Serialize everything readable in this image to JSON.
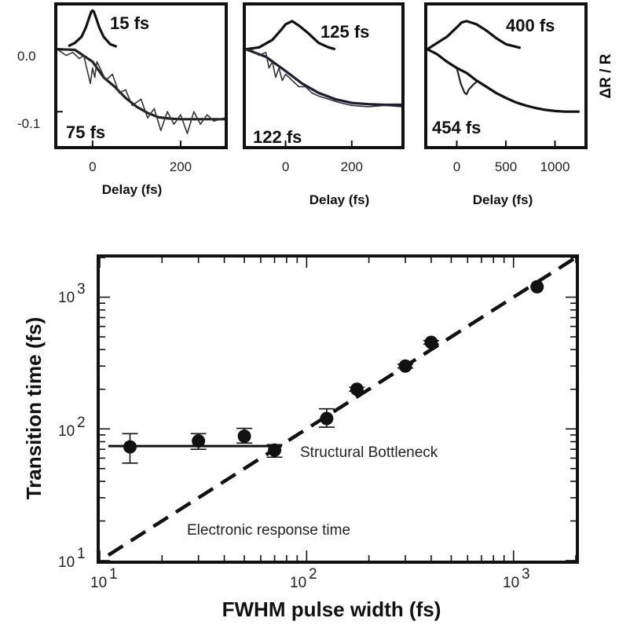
{
  "chart_data": [
    {
      "type": "line",
      "panel": "top-left",
      "xlabel": "Delay (fs)",
      "ylabel": "",
      "xlim": [
        -80,
        300
      ],
      "ylim": [
        -0.155,
        0.07
      ],
      "x_ticks": [
        0,
        200
      ],
      "x_tick_labels": [
        "0",
        "200"
      ],
      "y_ticks": [
        0.0,
        -0.1
      ],
      "y_tick_labels": [
        "0.0",
        "-0.1"
      ],
      "annotations": [
        "15 fs",
        "75 fs"
      ],
      "series": [
        {
          "label": "15 fs",
          "x": [
            -55,
            -40,
            -25,
            -15,
            -8,
            -3,
            0,
            3,
            8,
            15,
            25,
            40,
            55
          ],
          "y": [
            0.005,
            0.01,
            0.02,
            0.035,
            0.05,
            0.06,
            0.062,
            0.06,
            0.05,
            0.035,
            0.02,
            0.008,
            0.004
          ]
        },
        {
          "label": "75 fs",
          "x": [
            -80,
            -40,
            0,
            25,
            50,
            75,
            100,
            125,
            150,
            175,
            200,
            250,
            300
          ],
          "y": [
            0.0,
            -0.001,
            -0.02,
            -0.045,
            -0.06,
            -0.078,
            -0.092,
            -0.102,
            -0.109,
            -0.111,
            -0.112,
            -0.112,
            -0.112
          ]
        },
        {
          "x": [
            -80,
            -60,
            -45,
            -30,
            -20,
            -10,
            -5,
            0,
            5,
            10,
            20,
            30,
            45,
            60,
            75,
            90,
            110,
            125,
            140,
            155,
            170,
            185,
            200,
            215,
            230,
            245,
            260,
            275,
            300
          ],
          "y": [
            0.0,
            -0.01,
            -0.005,
            -0.015,
            -0.01,
            -0.04,
            -0.055,
            -0.03,
            -0.045,
            -0.02,
            -0.035,
            -0.05,
            -0.04,
            -0.07,
            -0.065,
            -0.09,
            -0.08,
            -0.11,
            -0.095,
            -0.13,
            -0.1,
            -0.12,
            -0.105,
            -0.135,
            -0.1,
            -0.12,
            -0.105,
            -0.115,
            -0.11
          ]
        }
      ]
    },
    {
      "type": "line",
      "panel": "top-middle",
      "xlabel": "Delay (fs)",
      "ylabel": "",
      "xlim": [
        -120,
        350
      ],
      "ylim": [
        -0.155,
        0.07
      ],
      "x_ticks": [
        0,
        200
      ],
      "x_tick_labels": [
        "0",
        "200"
      ],
      "annotations": [
        "125 fs",
        "122 fs"
      ],
      "series": [
        {
          "label": "125 fs",
          "x": [
            -120,
            -80,
            -40,
            -10,
            0,
            20,
            40,
            70,
            100,
            130,
            150
          ],
          "y": [
            0.0,
            0.003,
            0.015,
            0.033,
            0.04,
            0.045,
            0.038,
            0.025,
            0.01,
            0.003,
            0.0
          ]
        },
        {
          "label": "122 fs",
          "x": [
            -120,
            -60,
            0,
            50,
            100,
            150,
            200,
            250,
            300,
            350
          ],
          "y": [
            0.0,
            -0.012,
            -0.035,
            -0.055,
            -0.07,
            -0.08,
            -0.086,
            -0.088,
            -0.089,
            -0.089
          ]
        },
        {
          "x": [
            -120,
            -100,
            -80,
            -60,
            -50,
            -40,
            -30,
            -20,
            -10,
            0,
            20,
            40,
            60,
            80,
            100,
            130,
            160,
            200,
            250,
            300,
            350
          ],
          "y": [
            0.0,
            -0.002,
            -0.01,
            -0.005,
            -0.03,
            -0.02,
            -0.045,
            -0.03,
            -0.05,
            -0.04,
            -0.05,
            -0.06,
            -0.06,
            -0.07,
            -0.075,
            -0.08,
            -0.085,
            -0.09,
            -0.092,
            -0.09,
            -0.092
          ]
        }
      ]
    },
    {
      "type": "line",
      "panel": "top-right",
      "xlabel": "Delay (fs)",
      "ylabel": "ΔR / R",
      "xlim": [
        -300,
        1300
      ],
      "ylim": [
        -0.155,
        0.07
      ],
      "x_ticks": [
        0,
        500,
        1000
      ],
      "x_tick_labels": [
        "0",
        "500",
        "1000"
      ],
      "annotations": [
        "400 fs",
        "454 fs"
      ],
      "series": [
        {
          "label": "400 fs",
          "x": [
            -300,
            -200,
            -100,
            0,
            50,
            100,
            200,
            300,
            400,
            500,
            650
          ],
          "y": [
            0.0,
            0.01,
            0.02,
            0.035,
            0.043,
            0.045,
            0.04,
            0.03,
            0.018,
            0.008,
            0.002
          ]
        },
        {
          "label": "454 fs",
          "x": [
            -300,
            -200,
            -100,
            0,
            100,
            200,
            300,
            400,
            500,
            600,
            700,
            800,
            900,
            1000,
            1100,
            1250
          ],
          "y": [
            0.0,
            -0.008,
            -0.02,
            -0.03,
            -0.038,
            -0.05,
            -0.06,
            -0.07,
            -0.078,
            -0.085,
            -0.09,
            -0.094,
            -0.097,
            -0.099,
            -0.1,
            -0.1
          ]
        },
        {
          "x": [
            0,
            40,
            80,
            100,
            120,
            160,
            200
          ],
          "y": [
            -0.03,
            -0.055,
            -0.07,
            -0.072,
            -0.065,
            -0.058,
            -0.052
          ]
        }
      ]
    },
    {
      "type": "scatter",
      "panel": "bottom",
      "xlabel": "FWHM pulse width (fs)",
      "ylabel": "Transition time (fs)",
      "xscale": "log",
      "yscale": "log",
      "xlim": [
        10,
        2000
      ],
      "ylim": [
        10,
        2000
      ],
      "x_tick_labels": [
        "10¹",
        "10²",
        "10³"
      ],
      "y_tick_labels": [
        "10¹",
        "10²",
        "10³"
      ],
      "points": [
        {
          "x": 14,
          "y": 73,
          "yerr_low": 55,
          "yerr_high": 92
        },
        {
          "x": 30,
          "y": 81,
          "yerr_low": 70,
          "yerr_high": 92
        },
        {
          "x": 50,
          "y": 88,
          "yerr_low": 78,
          "yerr_high": 101
        },
        {
          "x": 70,
          "y": 69,
          "yerr_low": 61,
          "yerr_high": 76
        },
        {
          "x": 125,
          "y": 120,
          "yerr_low": 103,
          "yerr_high": 142
        },
        {
          "x": 175,
          "y": 200,
          "yerr_low": 193,
          "yerr_high": 207
        },
        {
          "x": 300,
          "y": 300,
          "yerr_low": 290,
          "yerr_high": 310
        },
        {
          "x": 400,
          "y": 454,
          "yerr_low": 440,
          "yerr_high": 468
        },
        {
          "x": 1300,
          "y": 1200,
          "yerr_low": 1170,
          "yerr_high": 1230
        }
      ],
      "lines": [
        {
          "label": "Structural Bottleneck",
          "style": "solid",
          "x": [
            11,
            76
          ],
          "y": [
            74,
            74
          ]
        },
        {
          "label": "Electronic response time",
          "style": "dashed",
          "x": [
            11,
            2000
          ],
          "y": [
            11,
            2000
          ]
        }
      ],
      "annotations": [
        "Structural Bottleneck",
        "Electronic response time"
      ]
    }
  ]
}
